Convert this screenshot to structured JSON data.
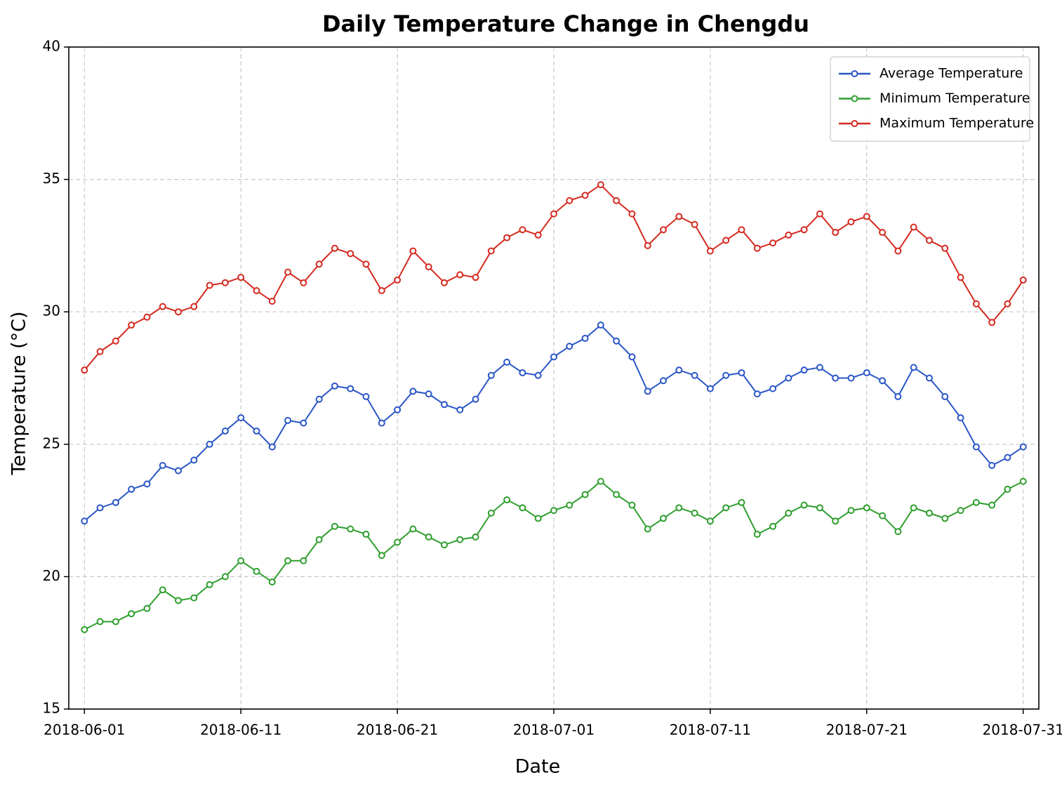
{
  "chart_data": {
    "type": "line",
    "title": "Daily Temperature Change in Chengdu",
    "x_label": "Date",
    "y_label": "Temperature (°C)",
    "x": [
      "2018-06-01",
      "2018-06-02",
      "2018-06-03",
      "2018-06-04",
      "2018-06-05",
      "2018-06-06",
      "2018-06-07",
      "2018-06-08",
      "2018-06-09",
      "2018-06-10",
      "2018-06-11",
      "2018-06-12",
      "2018-06-13",
      "2018-06-14",
      "2018-06-15",
      "2018-06-16",
      "2018-06-17",
      "2018-06-18",
      "2018-06-19",
      "2018-06-20",
      "2018-06-21",
      "2018-06-22",
      "2018-06-23",
      "2018-06-24",
      "2018-06-25",
      "2018-06-26",
      "2018-06-27",
      "2018-06-28",
      "2018-06-29",
      "2018-06-30",
      "2018-07-01",
      "2018-07-02",
      "2018-07-03",
      "2018-07-04",
      "2018-07-05",
      "2018-07-06",
      "2018-07-07",
      "2018-07-08",
      "2018-07-09",
      "2018-07-10",
      "2018-07-11",
      "2018-07-12",
      "2018-07-13",
      "2018-07-14",
      "2018-07-15",
      "2018-07-16",
      "2018-07-17",
      "2018-07-18",
      "2018-07-19",
      "2018-07-20",
      "2018-07-21",
      "2018-07-22",
      "2018-07-23",
      "2018-07-24",
      "2018-07-25",
      "2018-07-26",
      "2018-07-27",
      "2018-07-28",
      "2018-07-29",
      "2018-07-30",
      "2018-07-31"
    ],
    "series": [
      {
        "name": "Average Temperature",
        "color": "#2a56c6",
        "values": [
          22.1,
          22.6,
          22.8,
          23.3,
          23.5,
          24.2,
          24.0,
          24.4,
          25.0,
          25.5,
          26.0,
          25.5,
          24.9,
          25.9,
          25.8,
          26.7,
          27.2,
          27.1,
          26.8,
          25.8,
          26.3,
          27.0,
          26.9,
          26.5,
          26.3,
          26.7,
          27.6,
          28.1,
          27.7,
          27.6,
          28.3,
          28.7,
          29.0,
          29.5,
          28.9,
          28.3,
          27.0,
          27.4,
          27.8,
          27.6,
          27.1,
          27.6,
          27.7,
          26.9,
          27.1,
          27.5,
          27.8,
          27.9,
          27.5,
          27.5,
          27.7,
          27.4,
          26.8,
          27.9,
          27.5,
          26.8,
          26.0,
          24.9,
          24.2,
          24.5,
          24.9
        ]
      },
      {
        "name": "Minimum Temperature",
        "color": "#2e9e2e",
        "values": [
          18.0,
          18.3,
          18.3,
          18.6,
          18.8,
          19.5,
          19.1,
          19.2,
          19.7,
          20.0,
          20.6,
          20.2,
          19.8,
          20.6,
          20.6,
          21.4,
          21.9,
          21.8,
          21.6,
          20.8,
          21.3,
          21.8,
          21.5,
          21.2,
          21.4,
          21.5,
          22.4,
          22.9,
          22.6,
          22.2,
          22.5,
          22.7,
          23.1,
          23.6,
          23.1,
          22.7,
          21.8,
          22.2,
          22.6,
          22.4,
          22.1,
          22.6,
          22.8,
          21.6,
          21.9,
          22.4,
          22.7,
          22.6,
          22.1,
          22.5,
          22.6,
          22.3,
          21.7,
          22.6,
          22.4,
          22.2,
          22.5,
          22.8,
          22.7,
          23.3,
          23.6
        ]
      },
      {
        "name": "Maximum Temperature",
        "color": "#d42a20",
        "values": [
          27.8,
          28.5,
          28.9,
          29.5,
          29.8,
          30.2,
          30.0,
          30.2,
          31.0,
          31.1,
          31.3,
          30.8,
          30.4,
          31.5,
          31.1,
          31.8,
          32.4,
          32.2,
          31.8,
          30.8,
          31.2,
          32.3,
          31.7,
          31.1,
          31.4,
          31.3,
          32.3,
          32.8,
          33.1,
          32.9,
          33.7,
          34.2,
          34.4,
          34.8,
          34.2,
          33.7,
          32.5,
          33.1,
          33.6,
          33.3,
          32.3,
          32.7,
          33.1,
          32.4,
          32.6,
          32.9,
          33.1,
          33.7,
          33.0,
          33.4,
          33.6,
          33.0,
          32.3,
          33.2,
          32.7,
          32.4,
          31.3,
          30.3,
          29.6,
          30.3,
          31.2
        ]
      }
    ],
    "xlim": [
      "2018-05-31",
      "2018-08-01"
    ],
    "xticks": [
      "2018-06-01",
      "2018-06-11",
      "2018-06-21",
      "2018-07-01",
      "2018-07-11",
      "2018-07-21",
      "2018-07-31"
    ],
    "ylim": [
      15,
      40
    ],
    "yticks": [
      15,
      20,
      25,
      30,
      35,
      40
    ],
    "grid": true,
    "legend": "upper right"
  }
}
